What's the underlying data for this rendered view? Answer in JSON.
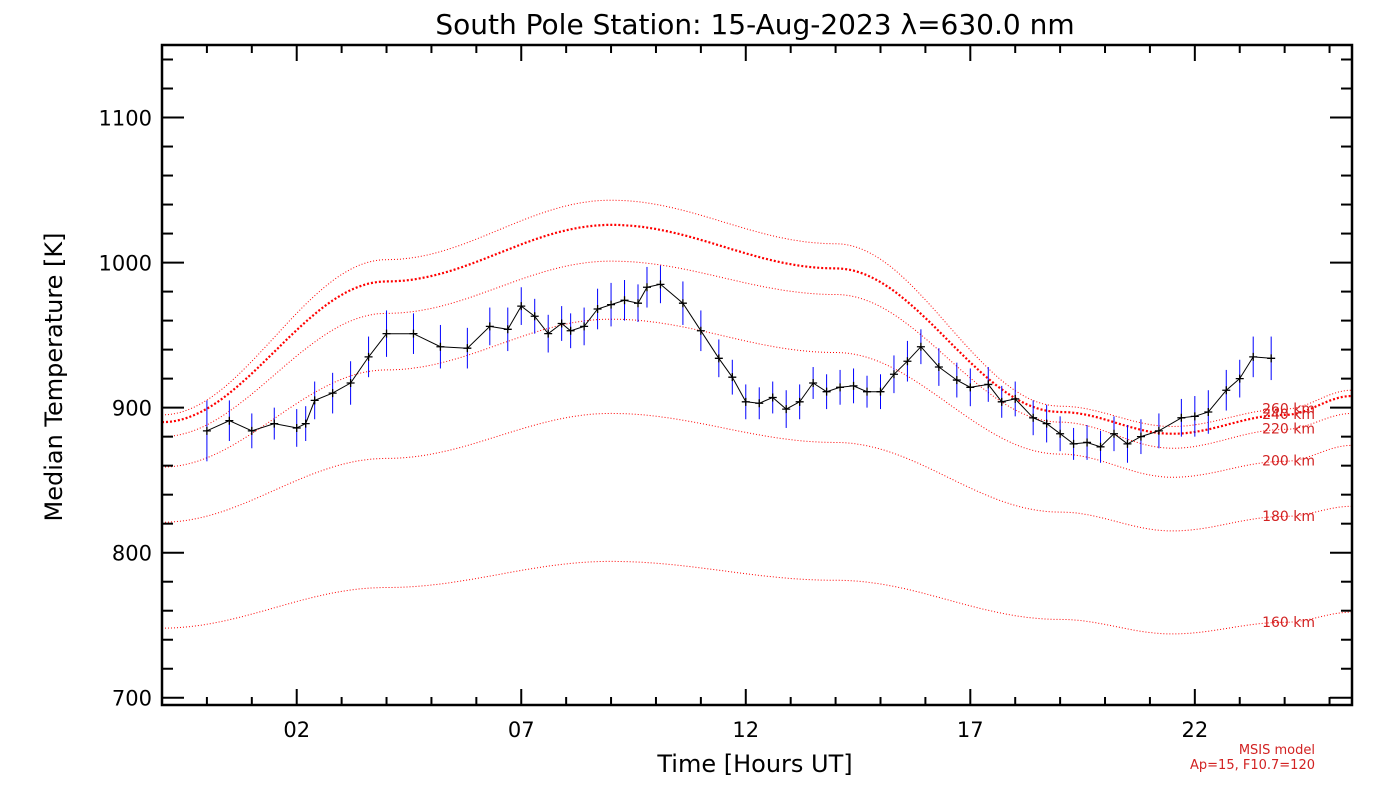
{
  "chart_data": {
    "type": "line",
    "title": "South Pole Station: 15-Aug-2023 λ=630.0 nm",
    "xlabel": "Time [Hours UT]",
    "ylabel": "Median Temperature [K]",
    "xlim": [
      -1.0,
      25.5
    ],
    "ylim": [
      695,
      1150
    ],
    "xticks": [
      2,
      7,
      12,
      17,
      22
    ],
    "xtick_labels": [
      "02",
      "07",
      "12",
      "17",
      "22"
    ],
    "yticks": [
      700,
      800,
      900,
      1000,
      1100
    ],
    "ytick_labels": [
      "700",
      "800",
      "900",
      "1000",
      "1100"
    ],
    "grid": false,
    "colors": {
      "data_line": "#000000",
      "error_bars": "#0000ff",
      "model": "#ff0000",
      "model_text": "#d22222"
    },
    "series": [
      {
        "x": [
          0.0,
          0.5,
          1.0,
          1.5,
          2.0,
          2.2,
          2.4,
          2.8,
          3.2,
          3.6,
          4.0,
          4.6,
          5.2,
          5.8,
          6.3,
          6.7,
          7.0,
          7.3,
          7.6,
          7.9,
          8.1,
          8.4,
          8.7,
          9.0,
          9.3,
          9.6,
          9.8,
          10.1,
          10.6,
          11.0,
          11.4,
          11.7,
          12.0,
          12.3,
          12.6,
          12.9,
          13.2,
          13.5,
          13.8,
          14.1,
          14.4,
          14.7,
          15.0,
          15.3,
          15.6,
          15.9,
          16.3,
          16.7,
          17.0,
          17.4,
          17.7,
          18.0,
          18.4,
          18.7,
          19.0,
          19.3,
          19.6,
          19.9,
          20.2,
          20.5,
          20.8,
          21.2,
          21.7,
          22.0,
          22.3,
          22.7,
          23.0,
          23.3,
          23.7
        ],
        "values": [
          884,
          891,
          884,
          889,
          886,
          889,
          905,
          910,
          917,
          935,
          951,
          951,
          942,
          941,
          956,
          954,
          970,
          963,
          951,
          958,
          953,
          956,
          968,
          971,
          974,
          972,
          983,
          985,
          972,
          953,
          934,
          921,
          904,
          903,
          907,
          899,
          904,
          917,
          911,
          914,
          915,
          911,
          911,
          923,
          932,
          942,
          928,
          919,
          914,
          916,
          904,
          906,
          893,
          889,
          882,
          875,
          876,
          873,
          882,
          875,
          880,
          884,
          893,
          894,
          897,
          912,
          920,
          935,
          934
        ]
      }
    ],
    "error_bars": [
      21,
      14,
      12,
      11,
      13,
      12,
      13,
      14,
      15,
      14,
      16,
      14,
      15,
      14,
      13,
      15,
      13,
      12,
      13,
      12,
      12,
      13,
      14,
      15,
      14,
      13,
      14,
      13,
      15,
      14,
      13,
      12,
      12,
      11,
      11,
      13,
      12,
      11,
      12,
      12,
      12,
      11,
      12,
      13,
      14,
      12,
      13,
      12,
      13,
      12,
      11,
      12,
      12,
      13,
      12,
      11,
      12,
      11,
      12,
      13,
      12,
      12,
      13,
      14,
      15,
      14,
      13,
      14,
      15
    ],
    "model_curves": [
      {
        "name": "160 km",
        "x": [
          -1,
          4,
          9,
          14,
          19,
          21.5,
          24,
          25.5
        ],
        "values": [
          748,
          776,
          794,
          781,
          754,
          744,
          752,
          759
        ]
      },
      {
        "name": "180 km",
        "x": [
          -1,
          4,
          9,
          14,
          19,
          21.5,
          24,
          25.5
        ],
        "values": [
          821,
          865,
          896,
          876,
          828,
          815,
          825,
          832
        ]
      },
      {
        "name": "200 km",
        "x": [
          -1,
          4,
          9,
          14,
          19,
          21.5,
          24,
          25.5
        ],
        "values": [
          859,
          926,
          961,
          938,
          868,
          852,
          863,
          874
        ]
      },
      {
        "name": "220 km",
        "x": [
          -1,
          4,
          9,
          14,
          19,
          21.5,
          24,
          25.5
        ],
        "values": [
          880,
          965,
          1001,
          978,
          890,
          872,
          885,
          896
        ]
      },
      {
        "name": "240 km",
        "x": [
          -1,
          4,
          9,
          14,
          19,
          21.5,
          24,
          25.5
        ],
        "values": [
          890,
          987,
          1026,
          996,
          897,
          882,
          895,
          908
        ]
      },
      {
        "name": "260 km",
        "x": [
          -1,
          4,
          9,
          14,
          19,
          21.5,
          24,
          25.5
        ],
        "values": [
          895,
          1002,
          1043,
          1013,
          901,
          887,
          899,
          912
        ]
      }
    ],
    "annotations": [
      "MSIS model",
      "Ap=15, F10.7=120"
    ]
  }
}
